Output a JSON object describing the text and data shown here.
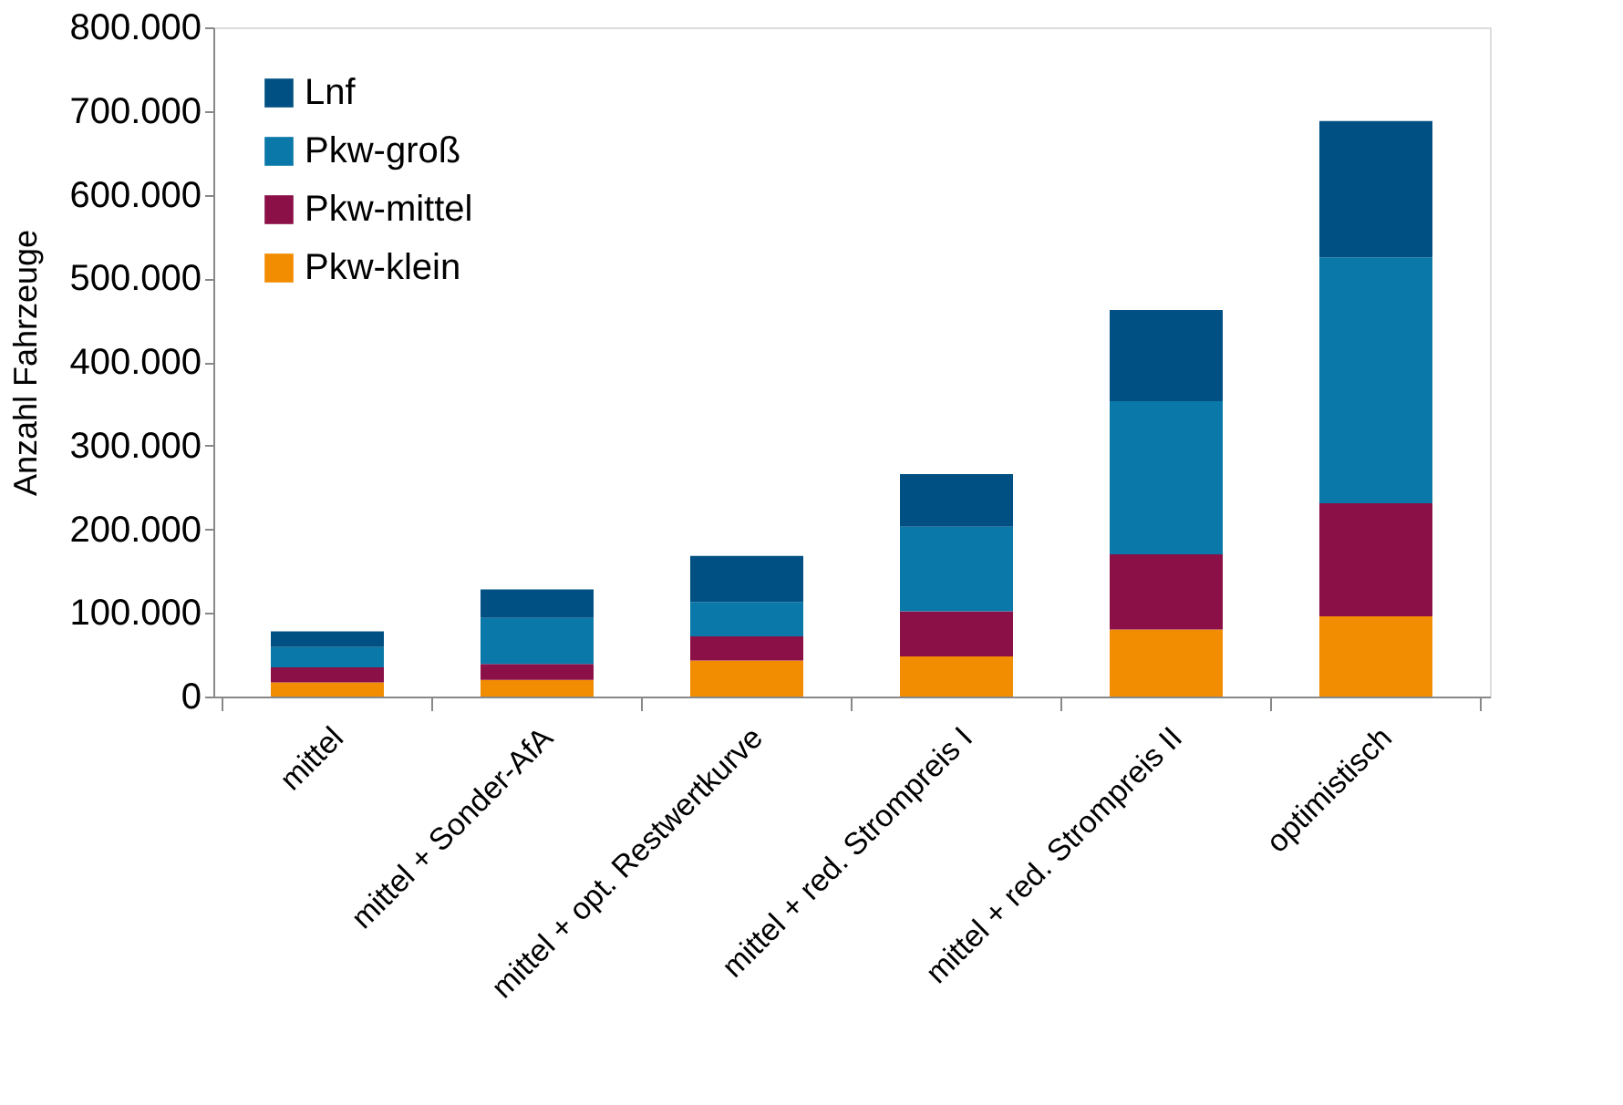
{
  "chart_data": {
    "type": "bar",
    "stacked": true,
    "ylabel": "Anzahl Fahrzeuge",
    "categories": [
      "mittel",
      "mittel + Sonder-AfA",
      "mittel + opt. Restwertkurve",
      "mittel + red. Strompreis I",
      "mittel + red. Strompreis II",
      "optimistisch"
    ],
    "series": [
      {
        "name": "Pkw-klein",
        "color": "#f28c00",
        "values": [
          17000,
          20000,
          43000,
          48000,
          80000,
          96000
        ]
      },
      {
        "name": "Pkw-mittel",
        "color": "#8b1048",
        "values": [
          18000,
          19000,
          29000,
          54000,
          90000,
          135000
        ]
      },
      {
        "name": "Pkw-groß",
        "color": "#0a78a8",
        "values": [
          24000,
          55000,
          41000,
          101000,
          183000,
          294000
        ]
      },
      {
        "name": "Lnf",
        "color": "#005083",
        "values": [
          19000,
          34000,
          55000,
          63000,
          109000,
          163000
        ]
      }
    ],
    "ylim": [
      0,
      800000
    ],
    "yticks": [
      {
        "value": 0,
        "label": "0"
      },
      {
        "value": 100000,
        "label": "100.000"
      },
      {
        "value": 200000,
        "label": "200.000"
      },
      {
        "value": 300000,
        "label": "300.000"
      },
      {
        "value": 400000,
        "label": "400.000"
      },
      {
        "value": 500000,
        "label": "500.000"
      },
      {
        "value": 600000,
        "label": "600.000"
      },
      {
        "value": 700000,
        "label": "700.000"
      },
      {
        "value": 800000,
        "label": "800.000"
      }
    ],
    "grid": false,
    "legend": "top left"
  }
}
